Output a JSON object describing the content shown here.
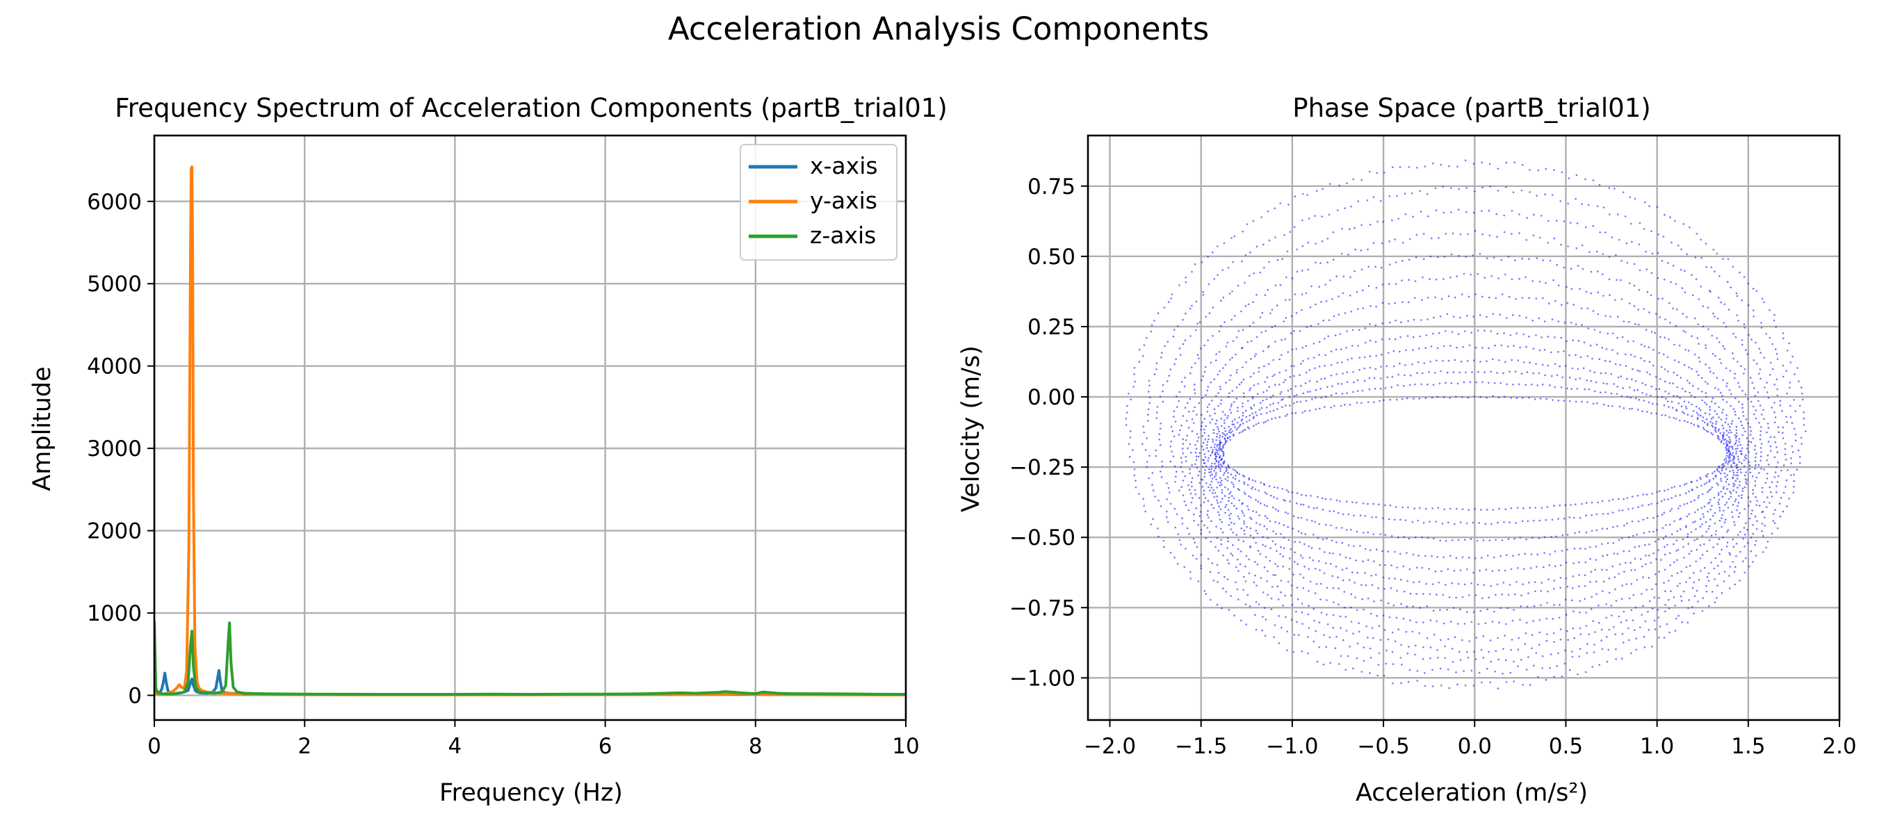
{
  "figure": {
    "suptitle": "Acceleration Analysis Components"
  },
  "chart_data": [
    {
      "type": "line",
      "title": "Frequency Spectrum of Acceleration Components (partB_trial01)",
      "xlabel": "Frequency (Hz)",
      "ylabel": "Amplitude",
      "xlim": [
        0,
        10
      ],
      "ylim": [
        -300,
        6800
      ],
      "xticks": [
        0,
        2,
        4,
        6,
        8,
        10
      ],
      "xtick_labels": [
        "0",
        "2",
        "4",
        "6",
        "8",
        "10"
      ],
      "yticks": [
        0,
        1000,
        2000,
        3000,
        4000,
        5000,
        6000
      ],
      "ytick_labels": [
        "0",
        "1000",
        "2000",
        "3000",
        "4000",
        "5000",
        "6000"
      ],
      "grid": true,
      "legend_position": "top-right",
      "series": [
        {
          "name": "x-axis",
          "color": "#1f77b4",
          "x": [
            0,
            0.02,
            0.05,
            0.08,
            0.1,
            0.12,
            0.14,
            0.16,
            0.18,
            0.2,
            0.25,
            0.3,
            0.35,
            0.4,
            0.45,
            0.48,
            0.5,
            0.52,
            0.55,
            0.6,
            0.7,
            0.78,
            0.82,
            0.84,
            0.86,
            0.88,
            0.9,
            0.94,
            1.0,
            1.2,
            1.5,
            2,
            3,
            4,
            5,
            6,
            7,
            7.5,
            8,
            8.5,
            9,
            9.5,
            10
          ],
          "y": [
            350,
            60,
            30,
            40,
            80,
            160,
            270,
            150,
            60,
            30,
            20,
            25,
            30,
            40,
            60,
            150,
            200,
            120,
            50,
            30,
            25,
            40,
            90,
            200,
            300,
            160,
            60,
            30,
            25,
            15,
            12,
            10,
            8,
            8,
            8,
            10,
            12,
            14,
            12,
            10,
            10,
            8,
            8
          ]
        },
        {
          "name": "y-axis",
          "color": "#ff7f0e",
          "x": [
            0,
            0.05,
            0.1,
            0.15,
            0.2,
            0.25,
            0.3,
            0.33,
            0.36,
            0.4,
            0.43,
            0.46,
            0.48,
            0.49,
            0.5,
            0.51,
            0.52,
            0.54,
            0.57,
            0.6,
            0.65,
            0.7,
            0.8,
            0.9,
            1.0,
            1.2,
            1.5,
            2,
            3,
            4,
            5,
            6,
            7,
            7.5,
            7.8,
            8,
            8.5,
            9,
            9.5,
            10
          ],
          "y": [
            20,
            15,
            15,
            20,
            30,
            50,
            90,
            130,
            100,
            80,
            300,
            1800,
            5200,
            6400,
            6420,
            5400,
            2500,
            600,
            150,
            80,
            50,
            40,
            30,
            25,
            20,
            15,
            10,
            8,
            6,
            6,
            6,
            8,
            10,
            12,
            20,
            10,
            8,
            6,
            6,
            5
          ]
        },
        {
          "name": "z-axis",
          "color": "#2ca02c",
          "x": [
            0,
            0.02,
            0.05,
            0.1,
            0.2,
            0.3,
            0.4,
            0.45,
            0.48,
            0.5,
            0.52,
            0.55,
            0.6,
            0.7,
            0.8,
            0.9,
            0.95,
            0.98,
            1.0,
            1.02,
            1.05,
            1.1,
            1.2,
            1.5,
            2,
            3,
            4,
            4.5,
            5,
            5.5,
            6,
            6.5,
            7,
            7.2,
            7.5,
            7.6,
            7.8,
            8,
            8.1,
            8.3,
            8.5,
            9,
            9.5,
            10
          ],
          "y": [
            900,
            80,
            30,
            20,
            15,
            20,
            40,
            150,
            600,
            780,
            350,
            100,
            40,
            30,
            25,
            40,
            120,
            600,
            880,
            400,
            100,
            40,
            25,
            18,
            15,
            12,
            12,
            15,
            12,
            15,
            15,
            18,
            30,
            25,
            35,
            45,
            30,
            20,
            40,
            25,
            20,
            18,
            15,
            12
          ]
        }
      ]
    },
    {
      "type": "scatter",
      "title": "Phase Space (partB_trial01)",
      "xlabel": "Acceleration (m/s²)",
      "ylabel": "Velocity (m/s)",
      "xlim": [
        -2.12,
        2.0
      ],
      "ylim": [
        -1.15,
        0.93
      ],
      "xticks": [
        -2.0,
        -1.5,
        -1.0,
        -0.5,
        0.0,
        0.5,
        1.0,
        1.5,
        2.0
      ],
      "xtick_labels": [
        "−2.0",
        "−1.5",
        "−1.0",
        "−0.5",
        "0.0",
        "0.5",
        "1.0",
        "1.5",
        "2.0"
      ],
      "yticks": [
        -1.0,
        -0.75,
        -0.5,
        -0.25,
        0.0,
        0.25,
        0.5,
        0.75
      ],
      "ytick_labels": [
        "−1.00",
        "−0.75",
        "−0.50",
        "−0.25",
        "0.00",
        "0.25",
        "0.50",
        "0.75"
      ],
      "grid": true,
      "point_color": "#0000ff",
      "structure": "nested elliptical loops",
      "loops": [
        {
          "cx": -0.05,
          "cy": -0.1,
          "rx": 1.85,
          "ry": 0.93
        },
        {
          "cx": -0.03,
          "cy": -0.12,
          "rx": 1.78,
          "ry": 0.86
        },
        {
          "cx": -0.02,
          "cy": -0.14,
          "rx": 1.72,
          "ry": 0.8
        },
        {
          "cx": 0.0,
          "cy": -0.16,
          "rx": 1.66,
          "ry": 0.74
        },
        {
          "cx": 0.0,
          "cy": -0.18,
          "rx": 1.61,
          "ry": 0.68
        },
        {
          "cx": 0.0,
          "cy": -0.19,
          "rx": 1.57,
          "ry": 0.62
        },
        {
          "cx": 0.0,
          "cy": -0.2,
          "rx": 1.53,
          "ry": 0.56
        },
        {
          "cx": 0.0,
          "cy": -0.21,
          "rx": 1.5,
          "ry": 0.5
        },
        {
          "cx": 0.0,
          "cy": -0.22,
          "rx": 1.47,
          "ry": 0.45
        },
        {
          "cx": 0.0,
          "cy": -0.22,
          "rx": 1.45,
          "ry": 0.4
        },
        {
          "cx": 0.0,
          "cy": -0.22,
          "rx": 1.43,
          "ry": 0.35
        },
        {
          "cx": 0.0,
          "cy": -0.21,
          "rx": 1.41,
          "ry": 0.3
        },
        {
          "cx": 0.0,
          "cy": -0.2,
          "rx": 1.4,
          "ry": 0.25
        },
        {
          "cx": 0.0,
          "cy": -0.2,
          "rx": 1.39,
          "ry": 0.2
        }
      ]
    }
  ]
}
